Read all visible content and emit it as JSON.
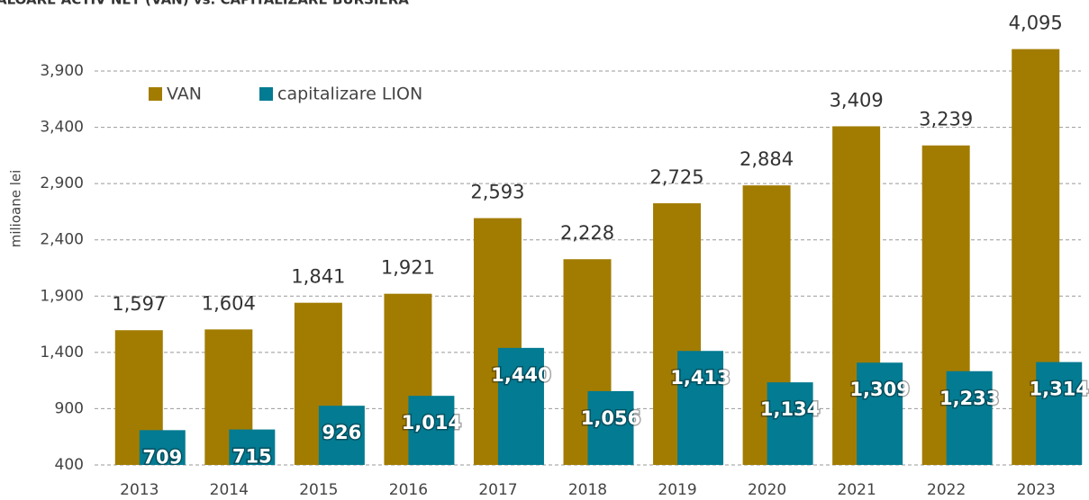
{
  "chart_data": {
    "type": "bar",
    "title": "ALOARE ACTIV NET (VAN) vs. CAPITALIZARE BURSIERA",
    "y_label": "milioane lei",
    "categories": [
      "2013",
      "2014",
      "2015",
      "2016",
      "2017",
      "2018",
      "2019",
      "2020",
      "2021",
      "2022",
      "2023"
    ],
    "series": [
      {
        "name": "VAN",
        "color": "#a27c00",
        "values": [
          1597,
          1604,
          1841,
          1921,
          2593,
          2228,
          2725,
          2884,
          3409,
          3239,
          4095
        ],
        "value_labels": [
          "1,597",
          "1,604",
          "1,841",
          "1,921",
          "2,593",
          "2,228",
          "2,725",
          "2,884",
          "3,409",
          "3,239",
          "4,095"
        ]
      },
      {
        "name": "capitalizare LION",
        "color": "#037b92",
        "values": [
          709,
          715,
          926,
          1014,
          1440,
          1056,
          1413,
          1134,
          1309,
          1233,
          1314
        ],
        "value_labels": [
          "709",
          "715",
          "926",
          "1,014",
          "1,440",
          "1,056",
          "1,413",
          "1,134",
          "1,309",
          "1,233",
          "1,314"
        ]
      }
    ],
    "ylim": [
      400,
      4150
    ],
    "yticks": [
      400,
      900,
      {
        "value": 1400,
        "label": "1,400"
      },
      {
        "value": 1900,
        "label": "1,900"
      },
      {
        "value": 2400,
        "label": "2,400"
      },
      {
        "value": 2900,
        "label": "2,900"
      },
      {
        "value": 3400,
        "label": "3,400"
      },
      {
        "value": 3900,
        "label": "3,900"
      }
    ],
    "grid": true,
    "legend": "top-left"
  }
}
